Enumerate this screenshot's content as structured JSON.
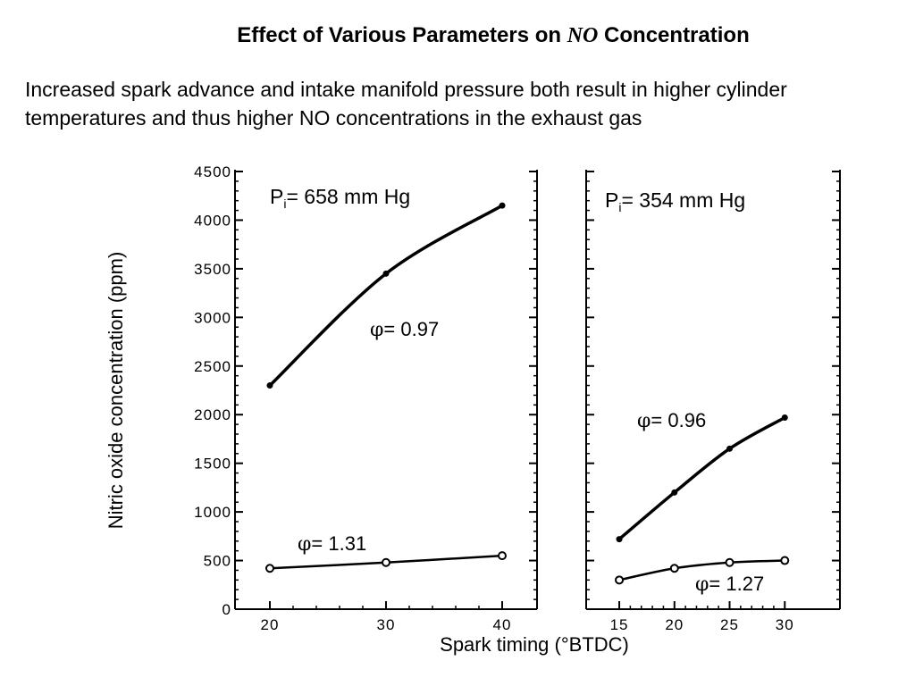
{
  "slide": {
    "title_pre": "Effect of Various Parameters on ",
    "title_em": "NO",
    "title_post": " Concentration",
    "subtitle": "Increased spark advance and intake manifold pressure both result in higher cylinder temperatures and thus higher NO concentrations in the exhaust gas"
  },
  "chart_data": [
    {
      "type": "line",
      "panel_label_main": "P",
      "panel_label_sub": "i",
      "panel_label_rest": "= 658 mm Hg",
      "xlabel": "Spark timing (°BTDC)",
      "ylabel": "Nitric oxide concentration (ppm)",
      "xlim": [
        17,
        43
      ],
      "ylim": [
        0,
        4500
      ],
      "xticks": [
        20,
        30,
        40
      ],
      "yticks": [
        0,
        500,
        1000,
        1500,
        2000,
        2500,
        3000,
        3500,
        4000,
        4500
      ],
      "series": [
        {
          "name_symbol": "φ",
          "name_rest": "= 0.97",
          "marker": "filled",
          "x": [
            20,
            30,
            40
          ],
          "y": [
            2300,
            3450,
            4150
          ]
        },
        {
          "name_symbol": "φ",
          "name_rest": "= 1.31",
          "marker": "open",
          "x": [
            20,
            30,
            40
          ],
          "y": [
            420,
            480,
            550
          ]
        }
      ]
    },
    {
      "type": "line",
      "panel_label_main": "P",
      "panel_label_sub": "i",
      "panel_label_rest": "= 354 mm Hg",
      "xlabel": "Spark timing (°BTDC)",
      "ylabel": "Nitric oxide concentration (ppm)",
      "xlim": [
        12,
        35
      ],
      "ylim": [
        0,
        4500
      ],
      "xticks": [
        15,
        20,
        25,
        30
      ],
      "series": [
        {
          "name_symbol": "φ",
          "name_rest": "= 0.96",
          "marker": "filled",
          "x": [
            15,
            20,
            25,
            30
          ],
          "y": [
            720,
            1200,
            1650,
            1970
          ]
        },
        {
          "name_symbol": "φ",
          "name_rest": "= 1.27",
          "marker": "open",
          "x": [
            15,
            20,
            25,
            30
          ],
          "y": [
            300,
            420,
            480,
            500
          ]
        }
      ]
    }
  ]
}
